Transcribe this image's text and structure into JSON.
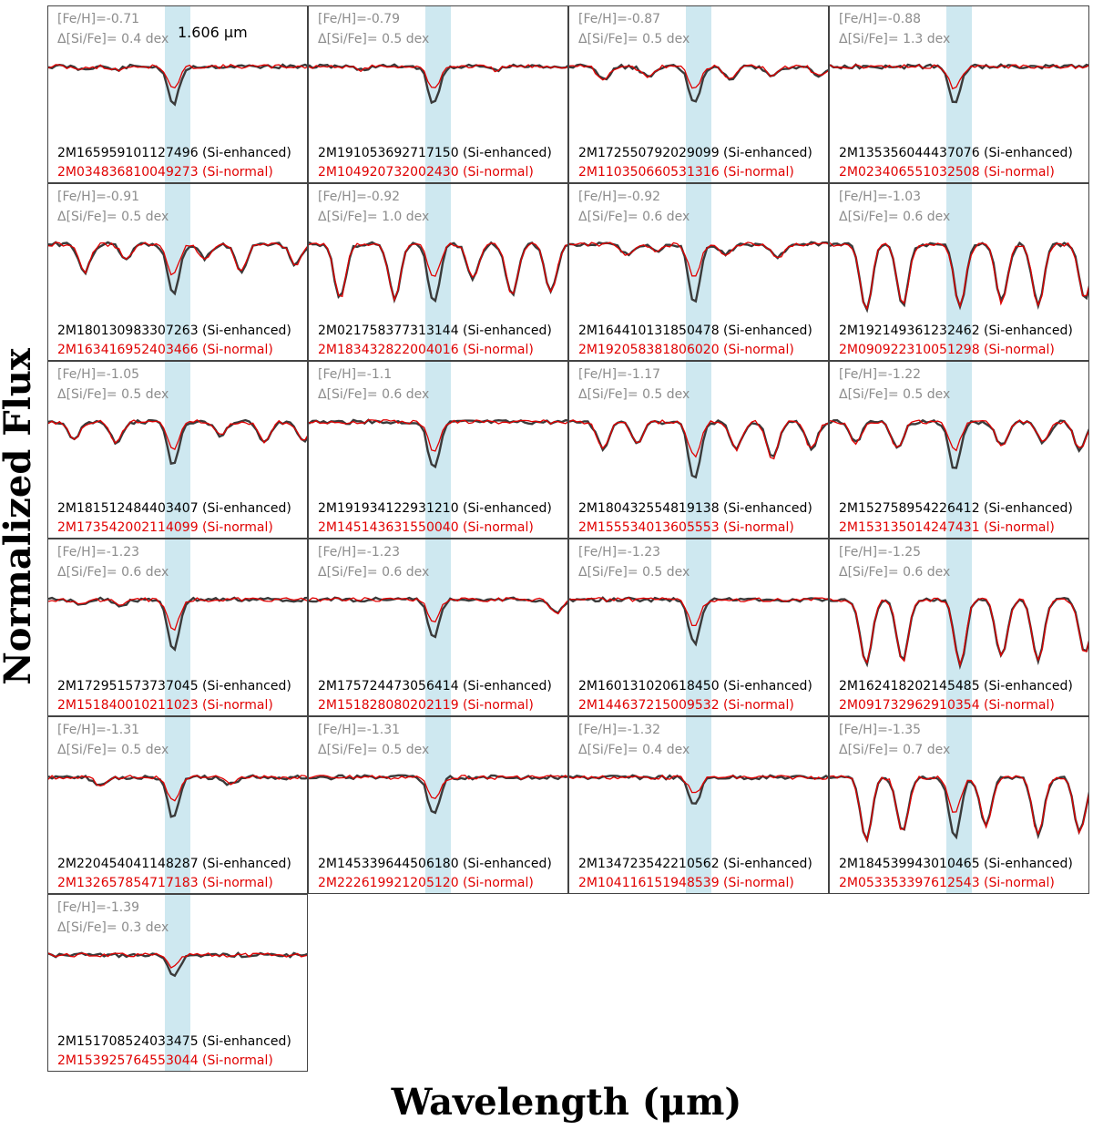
{
  "chart_data": {
    "type": "line",
    "xlabel": "Wavelength (μm)",
    "ylabel": "Normalized Flux",
    "highlight_line_label": "1.606 μm",
    "series_legend": {
      "enhanced": {
        "suffix": "(Si-enhanced)",
        "color": "#3a3a3a"
      },
      "normal": {
        "suffix": "(Si-normal)",
        "color": "#e00000"
      }
    },
    "highlight_color": "#add8e6",
    "panels": [
      {
        "feh": "[Fe/H]=-0.71",
        "dsife": "Δ[Si/Fe]= 0.4 dex",
        "enh": "2M165959101127496 (Si-enhanced)",
        "norm": "2M034836810049273 (Si-normal)",
        "dips": [
          [
            0.13,
            0.04
          ],
          [
            0.26,
            0.05
          ],
          [
            0.48,
            0.55
          ]
        ]
      },
      {
        "feh": "[Fe/H]=-0.79",
        "dsife": "Δ[Si/Fe]= 0.5 dex",
        "enh": "2M191053692717150 (Si-enhanced)",
        "norm": "2M104920732002430 (Si-normal)",
        "dips": [
          [
            0.2,
            0.05
          ],
          [
            0.48,
            0.55
          ],
          [
            0.72,
            0.05
          ]
        ]
      },
      {
        "feh": "[Fe/H]=-0.87",
        "dsife": "Δ[Si/Fe]= 0.5 dex",
        "enh": "2M172550792029099 (Si-enhanced)",
        "norm": "2M110350660531316 (Si-normal)",
        "dips": [
          [
            0.13,
            0.2
          ],
          [
            0.3,
            0.15
          ],
          [
            0.48,
            0.55
          ],
          [
            0.62,
            0.2
          ],
          [
            0.78,
            0.12
          ],
          [
            0.96,
            0.15
          ]
        ]
      },
      {
        "feh": "[Fe/H]=-0.88",
        "dsife": "Δ[Si/Fe]= 1.3 dex",
        "enh": "2M135356044437076 (Si-enhanced)",
        "norm": "2M023406551032508 (Si-normal)",
        "dips": [
          [
            0.48,
            0.55
          ]
        ]
      },
      {
        "feh": "[Fe/H]=-0.91",
        "dsife": "Δ[Si/Fe]= 0.5 dex",
        "enh": "2M180130983307263 (Si-enhanced)",
        "norm": "2M163416952403466 (Si-normal)",
        "dips": [
          [
            0.14,
            0.4
          ],
          [
            0.3,
            0.2
          ],
          [
            0.48,
            0.75
          ],
          [
            0.6,
            0.2
          ],
          [
            0.74,
            0.4
          ],
          [
            0.95,
            0.3
          ]
        ]
      },
      {
        "feh": "[Fe/H]=-0.92",
        "dsife": "Δ[Si/Fe]= 1.0 dex",
        "enh": "2M021758377313144 (Si-enhanced)",
        "norm": "2M183432822004016 (Si-normal)",
        "dips": [
          [
            0.12,
            0.8
          ],
          [
            0.33,
            0.8
          ],
          [
            0.48,
            0.85
          ],
          [
            0.63,
            0.5
          ],
          [
            0.78,
            0.75
          ],
          [
            0.93,
            0.7
          ]
        ]
      },
      {
        "feh": "[Fe/H]=-0.92",
        "dsife": "Δ[Si/Fe]= 0.6 dex",
        "enh": "2M164410131850478 (Si-enhanced)",
        "norm": "2M192058381806020 (Si-normal)",
        "dips": [
          [
            0.22,
            0.15
          ],
          [
            0.34,
            0.1
          ],
          [
            0.48,
            0.85
          ],
          [
            0.6,
            0.15
          ],
          [
            0.8,
            0.2
          ]
        ]
      },
      {
        "feh": "[Fe/H]=-1.03",
        "dsife": "Δ[Si/Fe]= 0.6 dex",
        "enh": "2M192149361232462 (Si-enhanced)",
        "norm": "2M090922310051298 (Si-normal)",
        "dips": [
          [
            0.14,
            0.95
          ],
          [
            0.28,
            0.9
          ],
          [
            0.5,
            0.9
          ],
          [
            0.66,
            0.85
          ],
          [
            0.8,
            0.9
          ],
          [
            0.98,
            0.8
          ]
        ]
      },
      {
        "feh": "[Fe/H]=-1.05",
        "dsife": "Δ[Si/Fe]= 0.5 dex",
        "enh": "2M181512484403407 (Si-enhanced)",
        "norm": "2M173542002114099 (Si-normal)",
        "dips": [
          [
            0.1,
            0.25
          ],
          [
            0.26,
            0.3
          ],
          [
            0.48,
            0.65
          ],
          [
            0.66,
            0.2
          ],
          [
            0.83,
            0.3
          ],
          [
            0.98,
            0.3
          ]
        ]
      },
      {
        "feh": "[Fe/H]=-1.1",
        "dsife": "Δ[Si/Fe]= 0.6 dex",
        "enh": "2M191934122931210 (Si-enhanced)",
        "norm": "2M145143631550040 (Si-normal)",
        "dips": [
          [
            0.48,
            0.7
          ]
        ]
      },
      {
        "feh": "[Fe/H]=-1.17",
        "dsife": "Δ[Si/Fe]= 0.5 dex",
        "enh": "2M180432554819138 (Si-enhanced)",
        "norm": "2M155534013605553 (Si-normal)",
        "dips": [
          [
            0.13,
            0.4
          ],
          [
            0.26,
            0.3
          ],
          [
            0.48,
            0.85
          ],
          [
            0.64,
            0.4
          ],
          [
            0.78,
            0.55
          ],
          [
            0.93,
            0.4
          ]
        ]
      },
      {
        "feh": "[Fe/H]=-1.22",
        "dsife": "Δ[Si/Fe]= 0.5 dex",
        "enh": "2M152758954226412 (Si-enhanced)",
        "norm": "2M153135014247431 (Si-normal)",
        "dips": [
          [
            0.1,
            0.3
          ],
          [
            0.26,
            0.4
          ],
          [
            0.48,
            0.7
          ],
          [
            0.66,
            0.35
          ],
          [
            0.82,
            0.3
          ],
          [
            0.96,
            0.4
          ]
        ]
      },
      {
        "feh": "[Fe/H]=-1.23",
        "dsife": "Δ[Si/Fe]= 0.6 dex",
        "enh": "2M172951573737045 (Si-enhanced)",
        "norm": "2M151840010211023 (Si-normal)",
        "dips": [
          [
            0.12,
            0.08
          ],
          [
            0.28,
            0.08
          ],
          [
            0.48,
            0.75
          ]
        ]
      },
      {
        "feh": "[Fe/H]=-1.23",
        "dsife": "Δ[Si/Fe]= 0.6 dex",
        "enh": "2M175724473056414 (Si-enhanced)",
        "norm": "2M151828080202119 (Si-normal)",
        "dips": [
          [
            0.48,
            0.55
          ],
          [
            0.95,
            0.2
          ]
        ]
      },
      {
        "feh": "[Fe/H]=-1.23",
        "dsife": "Δ[Si/Fe]= 0.5 dex",
        "enh": "2M160131020618450 (Si-enhanced)",
        "norm": "2M144637215009532 (Si-normal)",
        "dips": [
          [
            0.48,
            0.65
          ]
        ]
      },
      {
        "feh": "[Fe/H]=-1.25",
        "dsife": "Δ[Si/Fe]= 0.6 dex",
        "enh": "2M162418202145485 (Si-enhanced)",
        "norm": "2M091732962910354 (Si-normal)",
        "dips": [
          [
            0.14,
            0.95
          ],
          [
            0.28,
            0.9
          ],
          [
            0.5,
            0.95
          ],
          [
            0.66,
            0.85
          ],
          [
            0.8,
            0.9
          ],
          [
            0.98,
            0.8
          ]
        ]
      },
      {
        "feh": "[Fe/H]=-1.31",
        "dsife": "Δ[Si/Fe]= 0.5 dex",
        "enh": "2M220454041148287 (Si-enhanced)",
        "norm": "2M132657854717183 (Si-normal)",
        "dips": [
          [
            0.2,
            0.1
          ],
          [
            0.48,
            0.6
          ],
          [
            0.7,
            0.1
          ]
        ]
      },
      {
        "feh": "[Fe/H]=-1.31",
        "dsife": "Δ[Si/Fe]= 0.5 dex",
        "enh": "2M145339644506180 (Si-enhanced)",
        "norm": "2M222619921205120 (Si-normal)",
        "dips": [
          [
            0.48,
            0.55
          ]
        ]
      },
      {
        "feh": "[Fe/H]=-1.32",
        "dsife": "Δ[Si/Fe]= 0.4 dex",
        "enh": "2M134723542210562 (Si-enhanced)",
        "norm": "2M104116151948539 (Si-normal)",
        "dips": [
          [
            0.48,
            0.4
          ]
        ]
      },
      {
        "feh": "[Fe/H]=-1.35",
        "dsife": "Δ[Si/Fe]= 0.7 dex",
        "enh": "2M184539943010465 (Si-enhanced)",
        "norm": "2M053353397612543 (Si-normal)",
        "dips": [
          [
            0.14,
            0.9
          ],
          [
            0.28,
            0.8
          ],
          [
            0.48,
            0.9
          ],
          [
            0.6,
            0.7
          ],
          [
            0.8,
            0.85
          ],
          [
            0.96,
            0.8
          ]
        ]
      },
      {
        "feh": "[Fe/H]=-1.39",
        "dsife": "Δ[Si/Fe]= 0.3 dex",
        "enh": "2M151708524033475 (Si-enhanced)",
        "norm": "2M153925764553044 (Si-normal)",
        "dips": [
          [
            0.48,
            0.3
          ]
        ]
      }
    ]
  }
}
